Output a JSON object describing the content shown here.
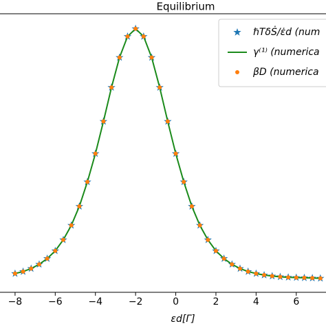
{
  "chart_data": {
    "type": "line",
    "title": "Equilibrium",
    "x_label": "εd[Γ]",
    "x": [
      -8,
      -7.6,
      -7.2,
      -6.8,
      -6.4,
      -6,
      -5.6,
      -5.2,
      -4.8,
      -4.4,
      -4,
      -3.6,
      -3.2,
      -2.8,
      -2.4,
      -2,
      -1.6,
      -1.2,
      -0.8,
      -0.4,
      0,
      0.4,
      0.8,
      1.2,
      1.6,
      2,
      2.4,
      2.8,
      3.2,
      3.6,
      4,
      4.4,
      4.8,
      5.2,
      5.6,
      6,
      6.4,
      6.8,
      7.2
    ],
    "series": [
      {
        "name": "ℏTδṠ/ε̇d (num",
        "color": "#1f77b4",
        "style": "star",
        "values": [
          0.02,
          0.028,
          0.04,
          0.057,
          0.08,
          0.111,
          0.155,
          0.213,
          0.289,
          0.387,
          0.5,
          0.629,
          0.765,
          0.885,
          0.969,
          1,
          0.969,
          0.885,
          0.765,
          0.629,
          0.5,
          0.387,
          0.289,
          0.213,
          0.155,
          0.111,
          0.08,
          0.057,
          0.04,
          0.028,
          0.02,
          0.014,
          0.01,
          0.007,
          0.005,
          0.004,
          0.003,
          0.002,
          0.001
        ]
      },
      {
        "name": "γ⁽¹⁾ (numerica",
        "color": "#1a8a1a",
        "style": "line",
        "values": [
          0.02,
          0.028,
          0.04,
          0.057,
          0.08,
          0.111,
          0.155,
          0.213,
          0.289,
          0.387,
          0.5,
          0.629,
          0.765,
          0.885,
          0.969,
          1,
          0.969,
          0.885,
          0.765,
          0.629,
          0.5,
          0.387,
          0.289,
          0.213,
          0.155,
          0.111,
          0.08,
          0.057,
          0.04,
          0.028,
          0.02,
          0.014,
          0.01,
          0.007,
          0.005,
          0.004,
          0.003,
          0.002,
          0.001
        ]
      },
      {
        "name": "βD (numerica",
        "color": "#ff7f0e",
        "style": "dot",
        "values": [
          0.02,
          0.028,
          0.04,
          0.057,
          0.08,
          0.111,
          0.155,
          0.213,
          0.289,
          0.387,
          0.5,
          0.629,
          0.765,
          0.885,
          0.969,
          1,
          0.969,
          0.885,
          0.765,
          0.629,
          0.5,
          0.387,
          0.289,
          0.213,
          0.155,
          0.111,
          0.08,
          0.057,
          0.04,
          0.028,
          0.02,
          0.014,
          0.01,
          0.007,
          0.005,
          0.004,
          0.003,
          0.002,
          0.001
        ]
      }
    ],
    "xlim": [
      -8.75,
      7.48
    ],
    "ylim": [
      -0.055,
      1.06
    ],
    "xticks": [
      {
        "value": -8,
        "label": "−8"
      },
      {
        "value": -6,
        "label": "−6"
      },
      {
        "value": -4,
        "label": "−4"
      },
      {
        "value": -2,
        "label": "−2"
      },
      0,
      2,
      4,
      6
    ],
    "legend": "upper right"
  }
}
